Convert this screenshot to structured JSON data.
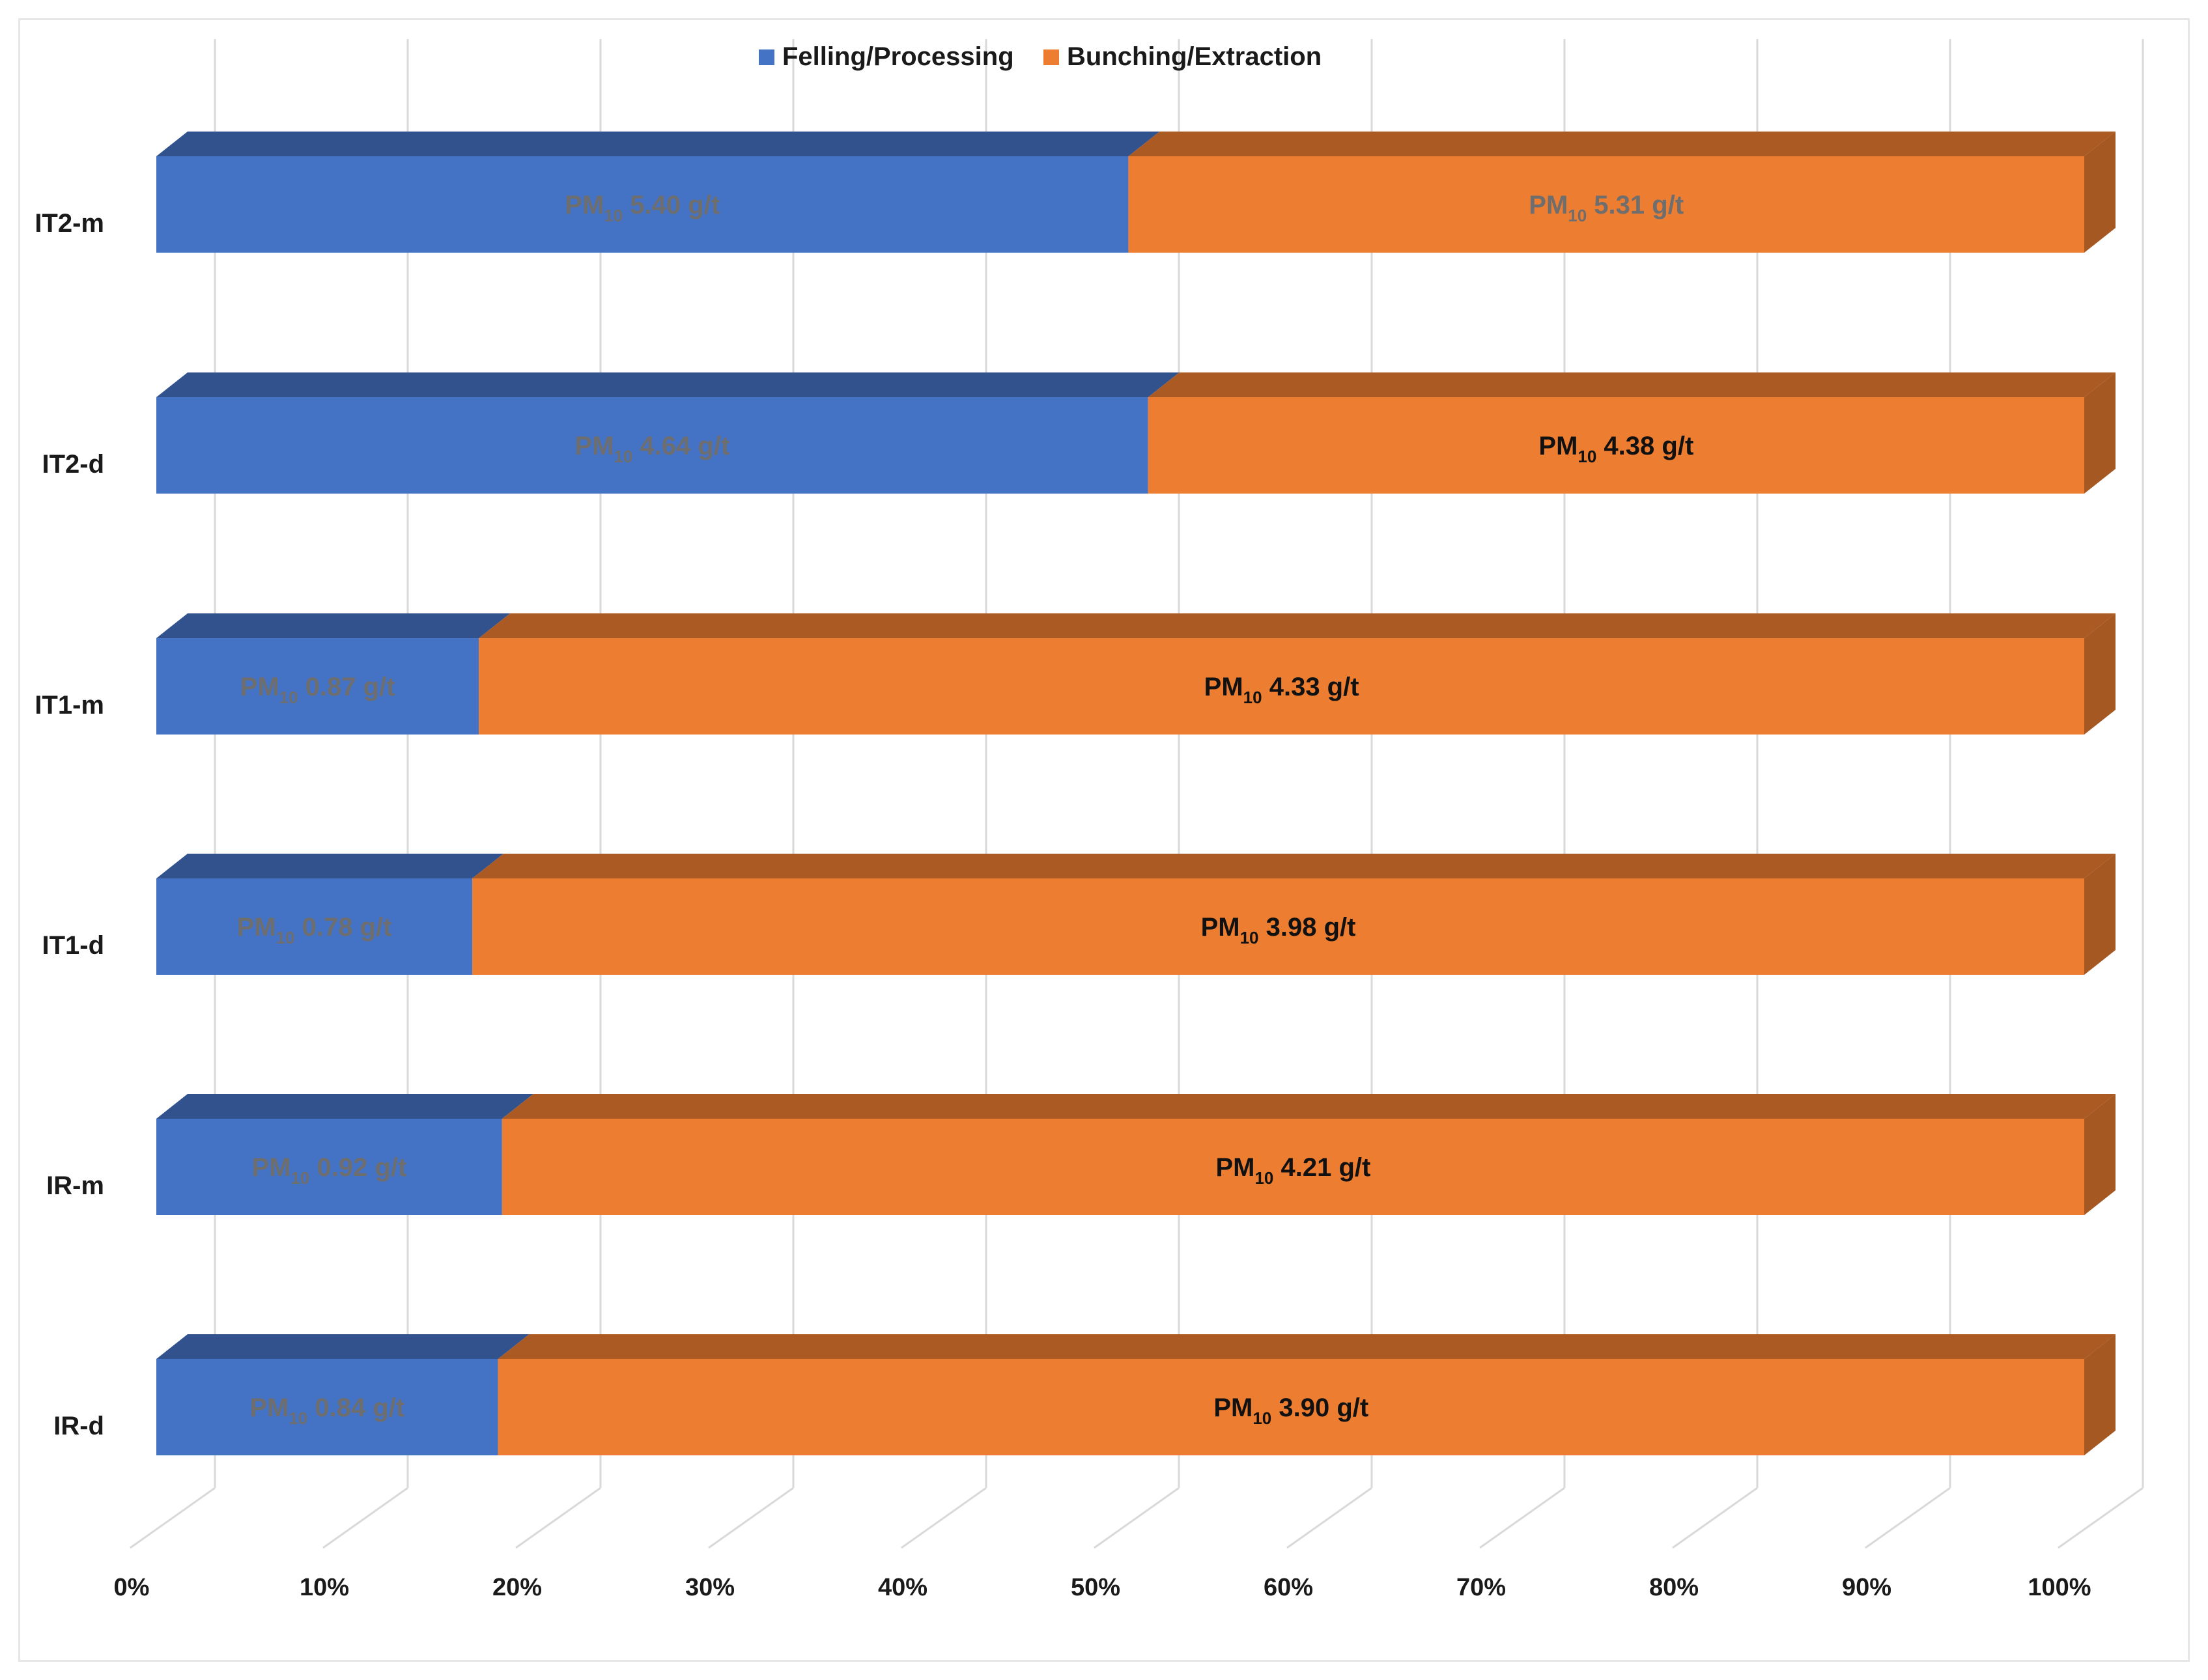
{
  "chart_data": {
    "type": "bar",
    "orientation": "horizontal",
    "stacked": "100%",
    "style": "3d",
    "categories": [
      "IR-d",
      "IR-m",
      "IT1-d",
      "IT1-m",
      "IT2-d",
      "IT2-m"
    ],
    "unit": "g/t",
    "series": [
      {
        "name": "Felling/Processing",
        "color": "#4472c4",
        "values": [
          0.84,
          0.92,
          0.78,
          0.87,
          4.64,
          5.4
        ],
        "labels": [
          {
            "prefix": "PM",
            "sub": "10",
            "rest": " 0.84 g/t"
          },
          {
            "prefix": "PM",
            "sub": "10",
            "rest": " 0.92 g/t"
          },
          {
            "prefix": "PM",
            "sub": "10",
            "rest": " 0.78 g/t"
          },
          {
            "prefix": "PM",
            "sub": "10",
            "rest": " 0.87 g/t"
          },
          {
            "prefix": "PM",
            "sub": "10",
            "rest": " 4.64 g/t"
          },
          {
            "prefix": "PM",
            "sub": "10",
            "rest": " 5.40 g/t"
          }
        ],
        "label_color": "#6e6e6e"
      },
      {
        "name": "Bunching/Extraction",
        "color": "#ed7d31",
        "values": [
          3.9,
          4.21,
          3.98,
          4.33,
          4.38,
          5.31
        ],
        "labels": [
          {
            "prefix": "PM",
            "sub": "10",
            "rest": " 3.90 g/t"
          },
          {
            "prefix": "PM",
            "sub": "10",
            "rest": " 4.21 g/t"
          },
          {
            "prefix": "PM",
            "sub": "10",
            "rest": " 3.98 g/t"
          },
          {
            "prefix": "PM",
            "sub": "10",
            "rest": " 4.33 g/t"
          },
          {
            "prefix": "PM",
            "sub": "10",
            "rest": " 4.38 g/t"
          },
          {
            "prefix": "PM",
            "sub": "10",
            "rest": " 5.31 g/t"
          }
        ],
        "label_colors": [
          "#111111",
          "#111111",
          "#111111",
          "#111111",
          "#111111",
          "#6e6e6e"
        ]
      }
    ],
    "x_ticks": [
      "0%",
      "10%",
      "20%",
      "30%",
      "40%",
      "50%",
      "60%",
      "70%",
      "80%",
      "90%",
      "100%"
    ],
    "xlim": [
      0,
      100
    ],
    "legend_position": "top-center",
    "grid": true,
    "title": "",
    "xlabel": "",
    "ylabel": ""
  }
}
